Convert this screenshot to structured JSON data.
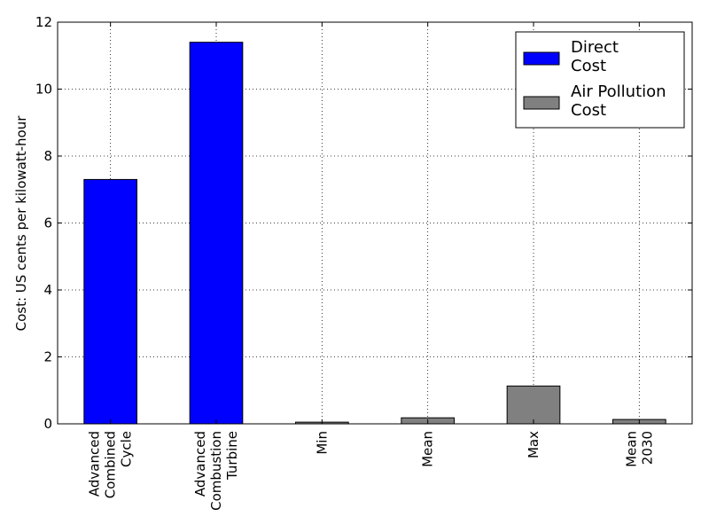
{
  "chart_data": {
    "type": "bar",
    "title": "",
    "xlabel": "",
    "ylabel": "Cost: US cents per kilowatt-hour",
    "ylim": [
      0,
      12
    ],
    "yticks": [
      "0",
      "2",
      "4",
      "6",
      "8",
      "10",
      "12"
    ],
    "grid": true,
    "legend_position": "top-right",
    "categories": [
      [
        "Advanced",
        "Combined",
        "Cycle"
      ],
      [
        "Advanced",
        "Combustion",
        "Turbine"
      ],
      [
        "Min"
      ],
      [
        "Mean"
      ],
      [
        "Max"
      ],
      [
        "Mean",
        "2030"
      ]
    ],
    "values": [
      7.3,
      11.4,
      0.05,
      0.18,
      1.13,
      0.13
    ],
    "bar_series": [
      "Direct Cost",
      "Direct Cost",
      "Air Pollution Cost",
      "Air Pollution Cost",
      "Air Pollution Cost",
      "Air Pollution Cost"
    ],
    "legend": [
      {
        "name": "Direct Cost",
        "lines": [
          "Direct",
          "Cost"
        ],
        "color": "#0000ff"
      },
      {
        "name": "Air Pollution Cost",
        "lines": [
          "Air Pollution",
          "Cost"
        ],
        "color": "#808080"
      }
    ]
  }
}
